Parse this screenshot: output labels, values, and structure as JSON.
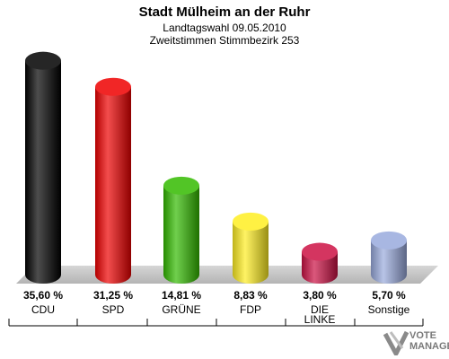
{
  "title": "Stadt Mülheim an der Ruhr",
  "subtitle1": "Landtagswahl 09.05.2010",
  "subtitle2": "Zweitstimmen Stimmbezirk 253",
  "watermark": {
    "line1": "VOTE",
    "line2": "MANAGER"
  },
  "chart_data": {
    "type": "bar",
    "categories": [
      "CDU",
      "SPD",
      "GRÜNE",
      "FDP",
      "DIE LINKE",
      "Sonstige"
    ],
    "values": [
      35.6,
      31.25,
      14.81,
      8.83,
      3.8,
      5.7
    ],
    "labels": [
      "35,60 %",
      "31,25 %",
      "14,81 %",
      "8,83 %",
      "3,80 %",
      "5,70 %"
    ],
    "colors": [
      "#000000",
      "#ee0000",
      "#33bb00",
      "#ffee22",
      "#cc1144",
      "#99aadd"
    ],
    "ylim": [
      0,
      36
    ]
  }
}
